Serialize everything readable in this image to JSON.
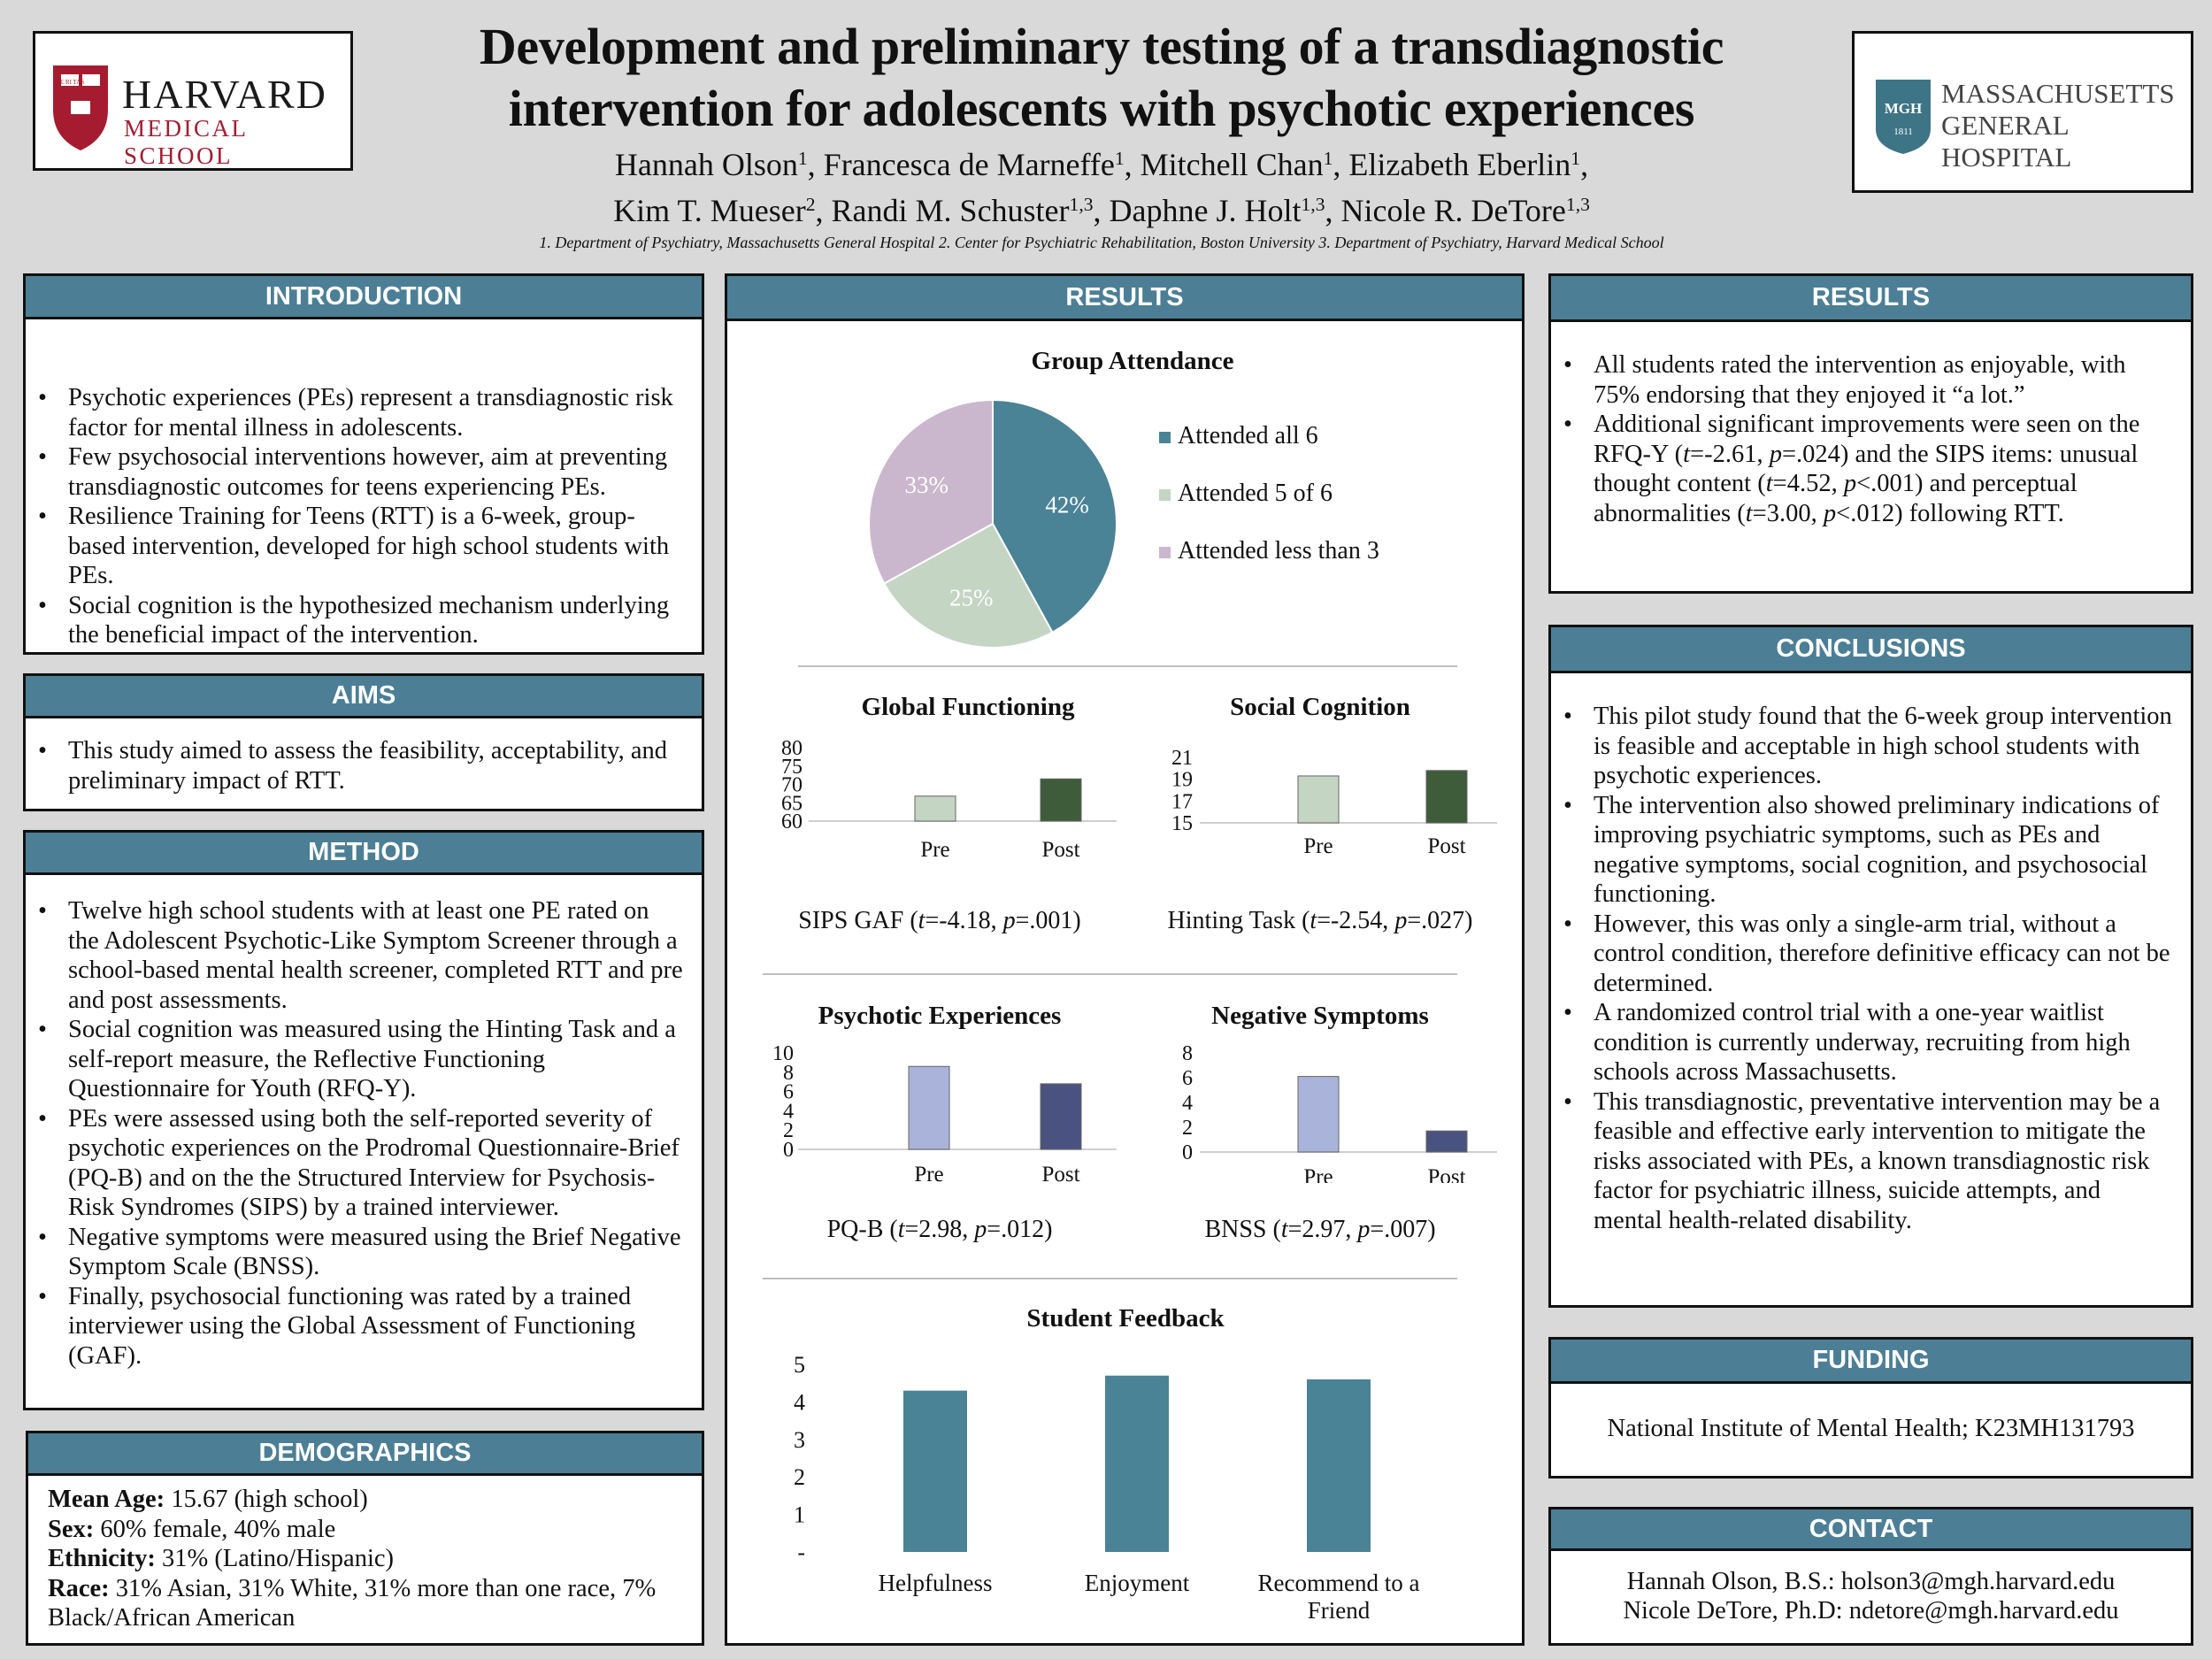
{
  "header": {
    "title_line1": "Development and preliminary testing of a transdiagnostic",
    "title_line2": "intervention for adolescents with psychotic experiences",
    "authors": [
      {
        "name": "Hannah Olson",
        "aff": "1"
      },
      {
        "name": "Francesca de Marneffe",
        "aff": "1"
      },
      {
        "name": "Mitchell Chan",
        "aff": "1"
      },
      {
        "name": "Elizabeth Eberlin",
        "aff": "1"
      },
      {
        "name": "Kim T. Mueser",
        "aff": "2"
      },
      {
        "name": "Randi M. Schuster",
        "aff": "1,3"
      },
      {
        "name": "Daphne J. Holt",
        "aff": "1,3"
      },
      {
        "name": "Nicole R. DeTore",
        "aff": "1,3"
      }
    ],
    "affiliations": "1. Department of Psychiatry, Massachusetts General Hospital  2. Center for Psychiatric Rehabilitation, Boston University  3. Department of Psychiatry, Harvard Medical School"
  },
  "logos": {
    "harvard_line1": "HARVARD",
    "harvard_line2": "MEDICAL SCHOOL",
    "harvard_shield_text": "VE RI TAS",
    "mgh_line1": "MASSACHUSETTS",
    "mgh_line2": "GENERAL HOSPITAL",
    "mgh_badge": "MGH",
    "mgh_year": "1811"
  },
  "colors": {
    "panel_header": "#4c7f95",
    "teal": "#4a8296",
    "sage": "#c4d5c3",
    "mauve": "#cbb7cd",
    "green_light": "#c4d5c3",
    "green_dark": "#3e5b3a",
    "purple_light": "#aab3d9",
    "purple_dark": "#4a5280",
    "harvard_crimson": "#a51c30",
    "mgh_blue": "#3d7486"
  },
  "introduction": {
    "heading": "INTRODUCTION",
    "bullets": [
      "Psychotic experiences (PEs) represent a transdiagnostic risk factor for mental illness in adolescents.",
      "Few psychosocial interventions however, aim at preventing transdiagnostic outcomes for teens experiencing PEs.",
      "Resilience Training for Teens (RTT) is a 6-week, group-based intervention, developed for high school students with PEs.",
      "Social cognition is the hypothesized mechanism underlying the beneficial impact of the intervention."
    ]
  },
  "aims": {
    "heading": "AIMS",
    "bullets": [
      "This study aimed to assess the feasibility, acceptability, and preliminary impact of RTT."
    ]
  },
  "method": {
    "heading": "METHOD",
    "bullets": [
      "Twelve high school students with at least one PE rated on the Adolescent Psychotic-Like Symptom Screener through a school-based mental health screener, completed RTT and pre and post assessments.",
      "Social cognition was measured using the Hinting Task and a self-report measure, the Reflective Functioning Questionnaire for Youth (RFQ-Y).",
      "PEs were assessed using both the self-reported severity of psychotic experiences on the Prodromal Questionnaire-Brief (PQ-B) and on the the Structured Interview for Psychosis-Risk Syndromes (SIPS) by a trained interviewer.",
      "Negative symptoms were measured using the Brief Negative Symptom Scale (BNSS).",
      "Finally, psychosocial functioning was rated by a trained interviewer using the Global Assessment of Functioning (GAF)."
    ]
  },
  "demographics": {
    "heading": "DEMOGRAPHICS",
    "rows": [
      {
        "label": "Mean Age:",
        "value": " 15.67 (high school)"
      },
      {
        "label": "Sex:",
        "value": " 60% female, 40% male"
      },
      {
        "label": "Ethnicity:",
        "value": " 31% (Latino/Hispanic)"
      },
      {
        "label": "Race:",
        "value": " 31% Asian, 31% White, 31% more than one race, 7% Black/African American"
      }
    ]
  },
  "results_center": {
    "heading": "RESULTS"
  },
  "chart_data": [
    {
      "type": "pie",
      "title": "Group Attendance",
      "categories": [
        "Attended all 6",
        "Attended 5 of 6",
        "Attended less than 3"
      ],
      "values": [
        42,
        25,
        33
      ],
      "labels": [
        "42%",
        "25%",
        "33%"
      ],
      "colors": [
        "#4a8296",
        "#c4d5c3",
        "#cbb7cd"
      ],
      "legend": "right"
    },
    {
      "type": "bar",
      "title": "Global Functioning",
      "categories": [
        "Pre",
        "Post"
      ],
      "values": [
        66.8,
        71.5
      ],
      "ylim": [
        60,
        80
      ],
      "yticks": [
        "60",
        "65",
        "70",
        "75",
        "80"
      ],
      "colors": [
        "#c4d5c3",
        "#3e5b3a"
      ],
      "stat_name": "SIPS GAF (",
      "stat_t": "t",
      "stat_mid": "=-4.18, ",
      "stat_p": "p",
      "stat_end": "=.001)"
    },
    {
      "type": "bar",
      "title": "Social Cognition",
      "categories": [
        "Pre",
        "Post"
      ],
      "values": [
        19.3,
        19.8
      ],
      "ylim": [
        15,
        21
      ],
      "yticks": [
        "15",
        "17",
        "19",
        "21"
      ],
      "colors": [
        "#c4d5c3",
        "#3e5b3a"
      ],
      "stat_name": "Hinting Task (",
      "stat_t": "t",
      "stat_mid": "=-2.54, ",
      "stat_p": "p",
      "stat_end": "=.027)"
    },
    {
      "type": "bar",
      "title": "Psychotic Experiences",
      "categories": [
        "Pre",
        "Post"
      ],
      "values": [
        8.6,
        6.8
      ],
      "ylim": [
        0,
        10
      ],
      "yticks": [
        "0",
        "2",
        "4",
        "6",
        "8",
        "10"
      ],
      "colors": [
        "#aab3d9",
        "#4a5280"
      ],
      "stat_name": "PQ-B (",
      "stat_t": "t",
      "stat_mid": "=2.98, ",
      "stat_p": "p",
      "stat_end": "=.012)"
    },
    {
      "type": "bar",
      "title": "Negative Symptoms",
      "categories": [
        "Pre",
        "Post"
      ],
      "values": [
        6.1,
        1.7
      ],
      "ylim": [
        0,
        8
      ],
      "yticks": [
        "0",
        "2",
        "4",
        "6",
        "8"
      ],
      "colors": [
        "#aab3d9",
        "#4a5280"
      ],
      "stat_name": "BNSS (",
      "stat_t": "t",
      "stat_mid": "=2.97, ",
      "stat_p": "p",
      "stat_end": "=.007)"
    },
    {
      "type": "bar",
      "title": "Student Feedback",
      "categories": [
        "Helpfulness",
        "Enjoyment",
        "Recommend to a Friend"
      ],
      "category_lines": [
        [
          "Helpfulness"
        ],
        [
          "Enjoyment"
        ],
        [
          "Recommend to a",
          "Friend"
        ]
      ],
      "values": [
        4.3,
        4.7,
        4.6
      ],
      "ylim": [
        0,
        5
      ],
      "yticks": [
        "-",
        "1",
        "2",
        "3",
        "4",
        "5"
      ],
      "colors": [
        "#4a8296"
      ]
    }
  ],
  "results_right": {
    "heading": "RESULTS",
    "b1": "All students rated the intervention as enjoyable, with 75% endorsing that they enjoyed it “a lot.”",
    "b2_pre": "Additional significant improvements were seen on the RFQ-Y (",
    "b2_s1": "=-2.61, ",
    "b2_s2": "=.024) and the SIPS items: unusual thought content (",
    "b2_s3": "=4.52, ",
    "b2_s4": "<.001) and perceptual abnormalities (",
    "b2_s5": "=3.00, ",
    "b2_s6": "<.012) following RTT.",
    "t": "t",
    "p": "p"
  },
  "conclusions": {
    "heading": "CONCLUSIONS",
    "bullets": [
      "This pilot study found that the 6-week group intervention is feasible and acceptable in high school students with psychotic experiences.",
      "The intervention also showed preliminary indications of improving psychiatric symptoms, such as PEs and negative symptoms, social cognition, and psychosocial functioning.",
      "However, this was only a single-arm trial, without a control condition, therefore definitive efficacy can not be determined.",
      "A randomized control trial with a one-year waitlist condition is currently underway, recruiting from high schools across Massachusetts.",
      "This transdiagnostic, preventative intervention may be a feasible and effective early intervention to mitigate the risks associated with PEs, a known transdiagnostic risk factor for psychiatric illness, suicide attempts, and mental health-related disability."
    ]
  },
  "funding": {
    "heading": "FUNDING",
    "text": "National Institute of Mental Health; K23MH131793"
  },
  "contact": {
    "heading": "CONTACT",
    "line1": "Hannah Olson, B.S.: holson3@mgh.harvard.edu",
    "line2": "Nicole DeTore, Ph.D: ndetore@mgh.harvard.edu"
  }
}
